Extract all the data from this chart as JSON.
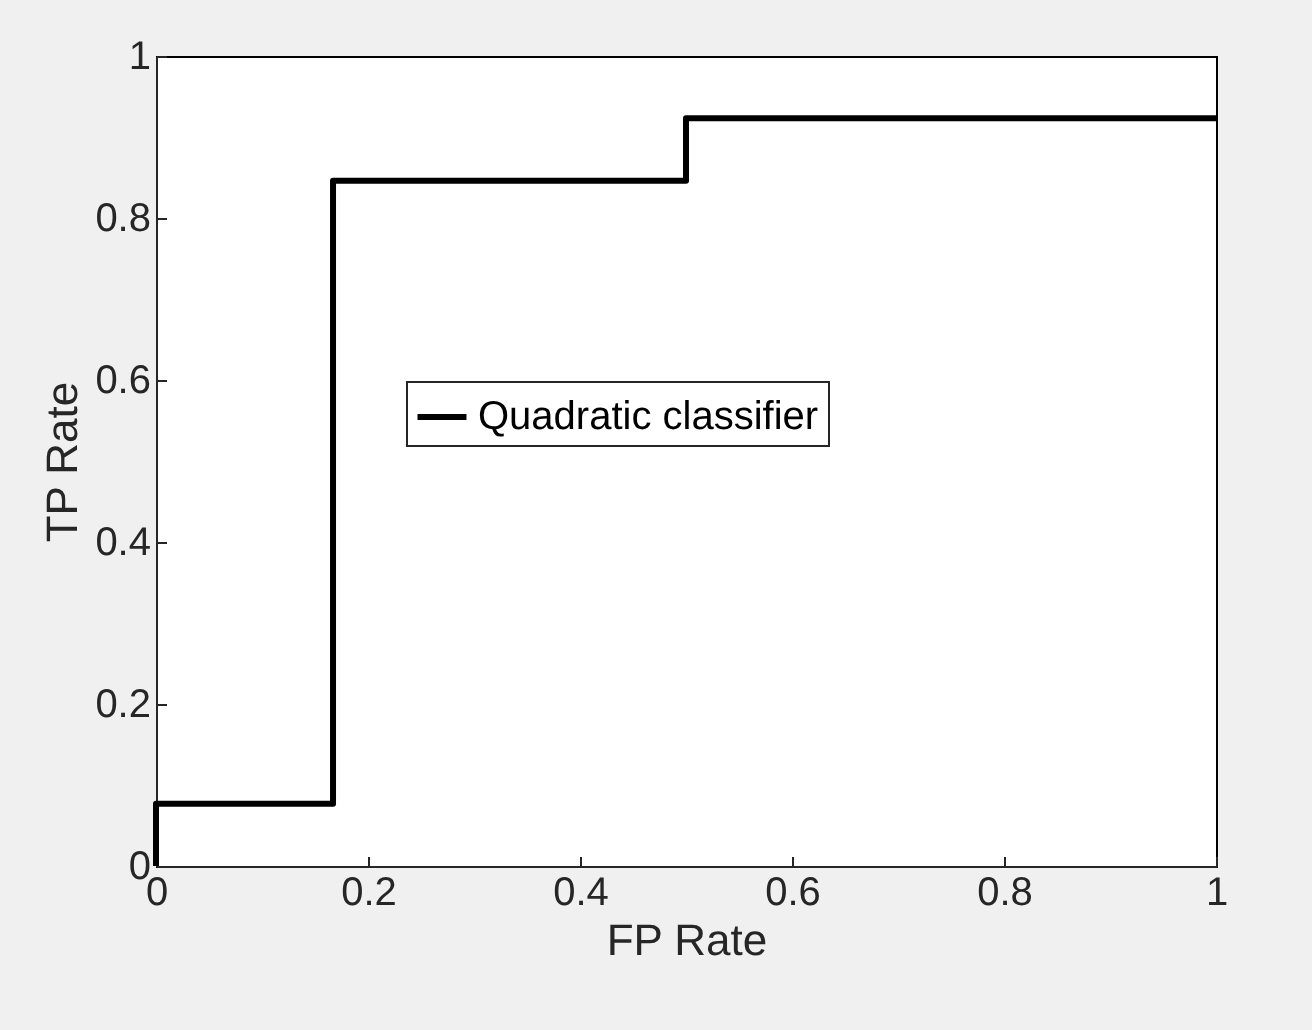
{
  "chart_data": {
    "type": "step",
    "xlabel": "FP Rate",
    "ylabel": "TP Rate",
    "x": [
      0,
      0,
      0.167,
      0.5,
      1
    ],
    "series": [
      {
        "name": "Quadratic classifier",
        "color": "#000000",
        "values": [
          0,
          0.077,
          0.846,
          0.923,
          0.923
        ]
      }
    ],
    "xlim": [
      0,
      1
    ],
    "xticks": [
      0,
      0.2,
      0.4,
      0.6,
      0.8,
      1
    ],
    "ylim": [
      0,
      1
    ],
    "yticks": [
      0,
      0.2,
      0.4,
      0.6,
      0.8,
      1
    ],
    "legend": "center",
    "grid": false,
    "line_style": "solid"
  }
}
